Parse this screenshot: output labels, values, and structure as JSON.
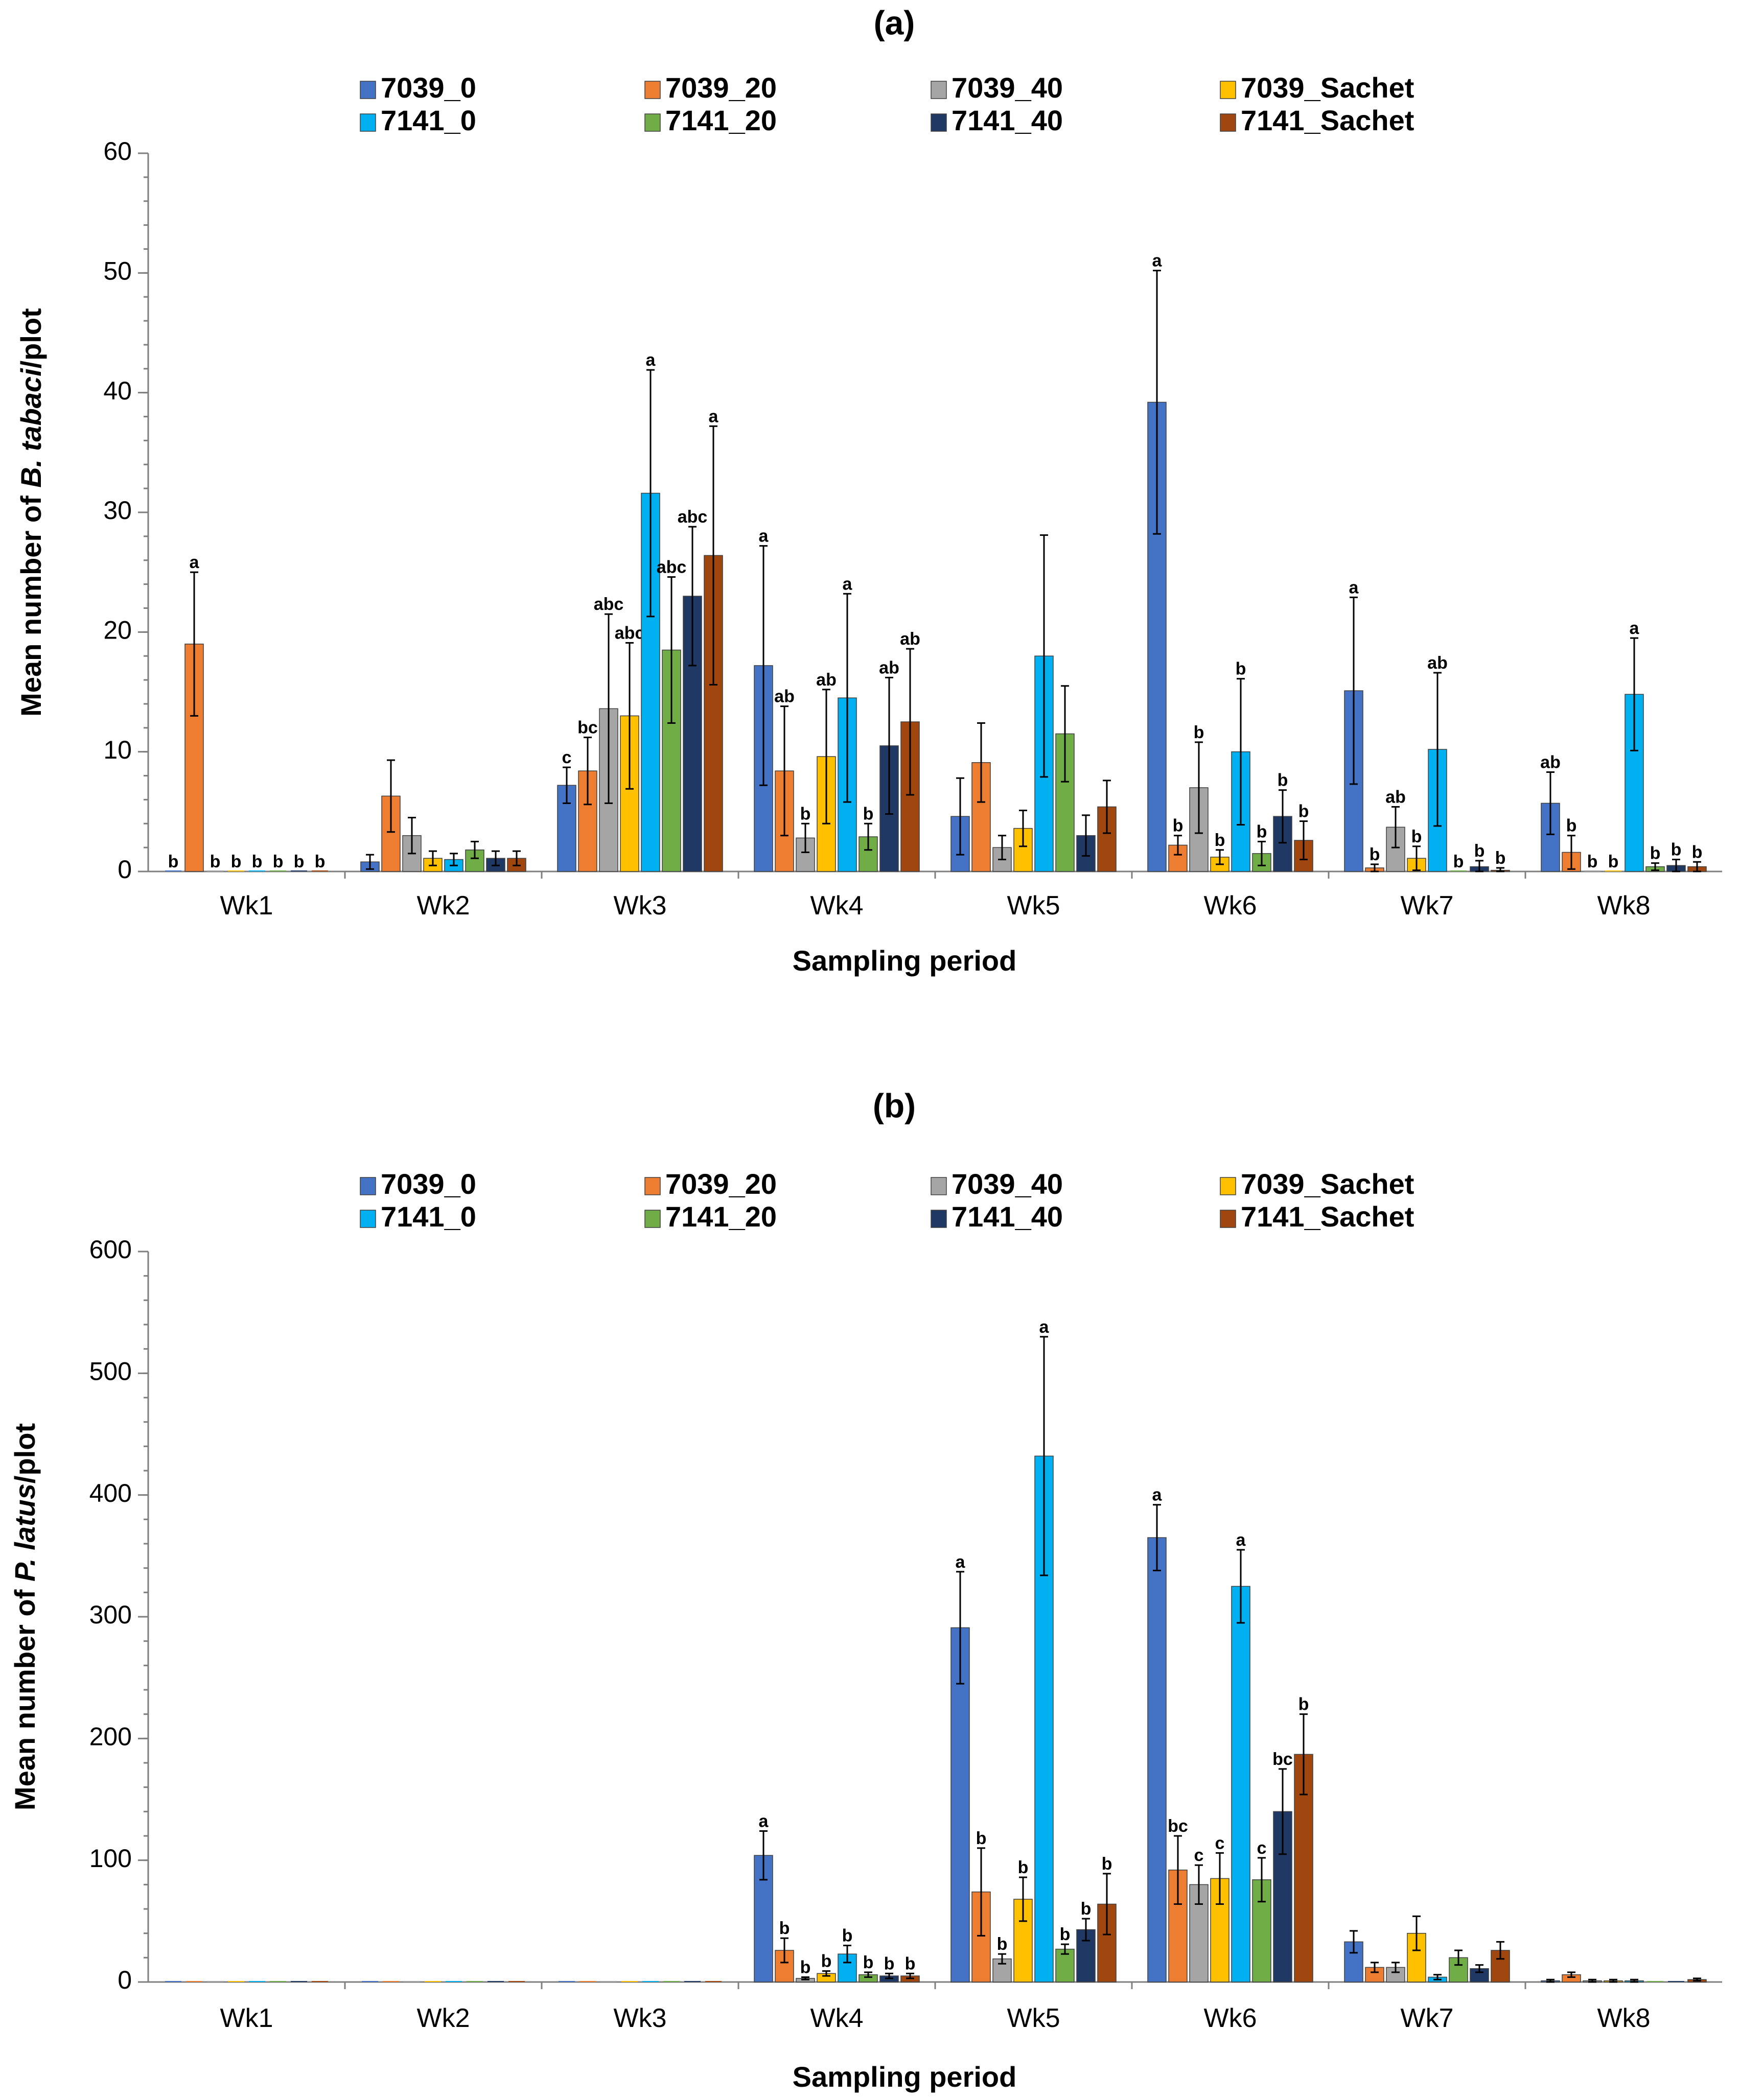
{
  "chart_data": [
    {
      "type": "bar",
      "panel_label": "(a)",
      "title": "",
      "xlabel": "Sampling period",
      "ylabel_prefix": "Mean number of ",
      "ylabel_italic": "B. tabaci",
      "ylabel_suffix": "/plot",
      "ylim": [
        0,
        60
      ],
      "major_ticks": [
        0,
        10,
        20,
        30,
        40,
        50,
        60
      ],
      "minor_tick_step": 2,
      "categories": [
        "Wk1",
        "Wk2",
        "Wk3",
        "Wk4",
        "Wk5",
        "Wk6",
        "Wk7",
        "Wk8"
      ],
      "legend_position": "top",
      "series": [
        {
          "name": "7039_0",
          "color": "#4472C4",
          "values": [
            0,
            0.8,
            7.2,
            17.2,
            4.6,
            39.2,
            15.1,
            5.7
          ],
          "errors": [
            0,
            0.6,
            1.5,
            10.0,
            3.2,
            11.0,
            7.8,
            2.6
          ],
          "letters": [
            "b",
            "",
            "c",
            "a",
            "",
            "a",
            "a",
            "ab"
          ]
        },
        {
          "name": "7039_20",
          "color": "#ED7D31",
          "values": [
            19.0,
            6.3,
            8.4,
            8.4,
            9.1,
            2.2,
            0.3,
            1.6
          ],
          "errors": [
            6.0,
            3.0,
            2.8,
            5.4,
            3.3,
            0.8,
            0.3,
            1.4
          ],
          "letters": [
            "a",
            "",
            "bc",
            "ab",
            "",
            "b",
            "b",
            "b"
          ]
        },
        {
          "name": "7039_40",
          "color": "#A5A5A5",
          "values": [
            0,
            3.0,
            13.6,
            2.8,
            2.0,
            7.0,
            3.7,
            0
          ],
          "errors": [
            0,
            1.5,
            7.9,
            1.2,
            1.0,
            3.8,
            1.7,
            0
          ],
          "letters": [
            "b",
            "",
            "abc",
            "b",
            "",
            "b",
            "ab",
            "b"
          ]
        },
        {
          "name": "7039_Sachet",
          "color": "#FFC000",
          "values": [
            0,
            1.1,
            13.0,
            9.6,
            3.6,
            1.2,
            1.1,
            0
          ],
          "errors": [
            0,
            0.6,
            6.1,
            5.6,
            1.5,
            0.6,
            1.0,
            0
          ],
          "letters": [
            "b",
            "",
            "abc",
            "ab",
            "",
            "b",
            "b",
            "b"
          ]
        },
        {
          "name": "7141_0",
          "color": "#00B0F0",
          "values": [
            0,
            1.0,
            31.6,
            14.5,
            18.0,
            10.0,
            10.2,
            14.8
          ],
          "errors": [
            0,
            0.5,
            10.3,
            8.7,
            10.1,
            6.1,
            6.4,
            4.7
          ],
          "letters": [
            "b",
            "",
            "a",
            "a",
            "",
            "b",
            "ab",
            "a"
          ]
        },
        {
          "name": "7141_20",
          "color": "#70AD47",
          "values": [
            0,
            1.8,
            18.5,
            2.9,
            11.5,
            1.5,
            0,
            0.4
          ],
          "errors": [
            0,
            0.7,
            6.1,
            1.1,
            4.0,
            1.0,
            0,
            0.3
          ],
          "letters": [
            "b",
            "",
            "abc",
            "b",
            "",
            "b",
            "b",
            "b"
          ]
        },
        {
          "name": "7141_40",
          "color": "#203864",
          "values": [
            0,
            1.1,
            23.0,
            10.5,
            3.0,
            4.6,
            0.4,
            0.5
          ],
          "errors": [
            0,
            0.6,
            5.8,
            5.7,
            1.7,
            2.2,
            0.5,
            0.5
          ],
          "letters": [
            "b",
            "",
            "abc",
            "ab",
            "",
            "b",
            "b",
            "b"
          ]
        },
        {
          "name": "7141_Sachet",
          "color": "#A0460F",
          "values": [
            0,
            1.1,
            26.4,
            12.5,
            5.4,
            2.6,
            0.1,
            0.4
          ],
          "errors": [
            0,
            0.6,
            10.8,
            6.1,
            2.2,
            1.6,
            0.2,
            0.4
          ],
          "letters": [
            "b",
            "",
            "a",
            "ab",
            "",
            "b",
            "b",
            "b"
          ]
        }
      ]
    },
    {
      "type": "bar",
      "panel_label": "(b)",
      "title": "",
      "xlabel": "Sampling period",
      "ylabel_prefix": "Mean number of ",
      "ylabel_italic": "P. latus",
      "ylabel_suffix": "/plot",
      "ylim": [
        0,
        600
      ],
      "major_ticks": [
        0,
        100,
        200,
        300,
        400,
        500,
        600
      ],
      "minor_tick_step": 20,
      "categories": [
        "Wk1",
        "Wk2",
        "Wk3",
        "Wk4",
        "Wk5",
        "Wk6",
        "Wk7",
        "Wk8"
      ],
      "legend_position": "top",
      "series": [
        {
          "name": "7039_0",
          "color": "#4472C4",
          "values": [
            0,
            0,
            0,
            104,
            291,
            365,
            33,
            1
          ],
          "errors": [
            0,
            0,
            0,
            20,
            46,
            27,
            9,
            1
          ],
          "letters": [
            "",
            "",
            "",
            "a",
            "a",
            "a",
            "",
            ""
          ]
        },
        {
          "name": "7039_20",
          "color": "#ED7D31",
          "values": [
            0,
            0,
            0,
            26,
            74,
            92,
            12,
            6
          ],
          "errors": [
            0,
            0,
            0,
            10,
            36,
            28,
            4,
            2
          ],
          "letters": [
            "",
            "",
            "",
            "b",
            "b",
            "bc",
            "",
            ""
          ]
        },
        {
          "name": "7039_40",
          "color": "#A5A5A5",
          "values": [
            0,
            0,
            0,
            3,
            19,
            80,
            12,
            1
          ],
          "errors": [
            0,
            0,
            0,
            1,
            4,
            16,
            4,
            1
          ],
          "letters": [
            "",
            "",
            "",
            "b",
            "b",
            "c",
            "",
            ""
          ]
        },
        {
          "name": "7039_Sachet",
          "color": "#FFC000",
          "values": [
            0,
            0,
            0,
            7,
            68,
            85,
            40,
            1
          ],
          "errors": [
            0,
            0,
            0,
            2,
            18,
            21,
            14,
            1
          ],
          "letters": [
            "",
            "",
            "",
            "b",
            "b",
            "c",
            "",
            ""
          ]
        },
        {
          "name": "7141_0",
          "color": "#00B0F0",
          "values": [
            0,
            0,
            0,
            23,
            432,
            325,
            4,
            1
          ],
          "errors": [
            0,
            0,
            0,
            7,
            98,
            30,
            2,
            1
          ],
          "letters": [
            "",
            "",
            "",
            "b",
            "a",
            "a",
            "",
            ""
          ]
        },
        {
          "name": "7141_20",
          "color": "#70AD47",
          "values": [
            0,
            0,
            0,
            6,
            27,
            84,
            20,
            0
          ],
          "errors": [
            0,
            0,
            0,
            2,
            4,
            18,
            6,
            0
          ],
          "letters": [
            "",
            "",
            "",
            "b",
            "b",
            "c",
            "",
            ""
          ]
        },
        {
          "name": "7141_40",
          "color": "#203864",
          "values": [
            0,
            0,
            0,
            5,
            43,
            140,
            11,
            0
          ],
          "errors": [
            0,
            0,
            0,
            2,
            9,
            35,
            3,
            0
          ],
          "letters": [
            "",
            "",
            "",
            "b",
            "b",
            "bc",
            "",
            ""
          ]
        },
        {
          "name": "7141_Sachet",
          "color": "#A0460F",
          "values": [
            0,
            0,
            0,
            5,
            64,
            187,
            26,
            2
          ],
          "errors": [
            0,
            0,
            0,
            2,
            25,
            33,
            7,
            1
          ],
          "letters": [
            "",
            "",
            "",
            "b",
            "b",
            "b",
            "",
            ""
          ]
        }
      ]
    }
  ]
}
